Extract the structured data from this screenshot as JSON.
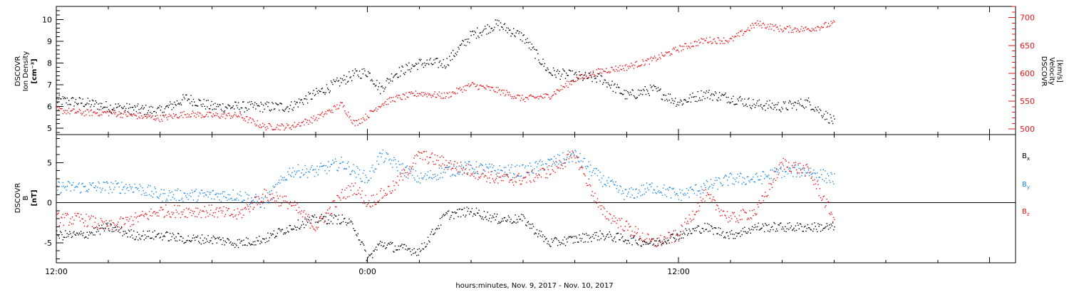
{
  "chart_data": [
    {
      "type": "scatter",
      "panel": "top",
      "ylabel": [
        "DSCOVR",
        "Ion Density",
        "[cm⁻³]"
      ],
      "ylabel_right": [
        "DSCOVR",
        "Velocity",
        "[km/s]"
      ],
      "x_tick_labels": [
        "12:00",
        "0:00",
        "12:00"
      ],
      "y_ticks_left": [
        5,
        6,
        7,
        8,
        9,
        10
      ],
      "y_ticks_right": [
        500,
        550,
        600,
        650,
        700
      ],
      "ylim": [
        4.7,
        10.6
      ],
      "ylim_right": [
        490,
        720
      ],
      "xlim_hours": [
        0,
        37
      ],
      "series": [
        {
          "color": "#000000",
          "x_hours": [
            0,
            1,
            2,
            3,
            4,
            5,
            6,
            7,
            8,
            9,
            10,
            11,
            11.5,
            12,
            12.5,
            13,
            14,
            15,
            16,
            17,
            18,
            19,
            20,
            21,
            22,
            23,
            24,
            25,
            26,
            27,
            28,
            29,
            30
          ],
          "values": [
            6.3,
            6.2,
            6.0,
            5.9,
            5.8,
            6.4,
            6.0,
            6.0,
            6.0,
            6.0,
            6.6,
            7.2,
            7.5,
            7.6,
            6.8,
            7.5,
            8.0,
            8.0,
            9.3,
            9.8,
            9.2,
            7.6,
            7.4,
            7.3,
            6.5,
            6.8,
            6.2,
            6.6,
            6.4,
            6.1,
            6.0,
            6.2,
            5.3
          ]
        },
        {
          "color": "#e8141a",
          "x_hours": [
            0,
            1,
            2,
            3,
            4,
            5,
            6,
            7,
            8,
            9,
            10,
            11,
            11.5,
            12,
            12.5,
            13,
            14,
            15,
            16,
            17,
            18,
            19,
            20,
            21,
            22,
            23,
            24,
            25,
            26,
            27,
            28,
            29,
            30
          ],
          "values": [
            535,
            530,
            530,
            525,
            520,
            528,
            525,
            525,
            505,
            505,
            520,
            545,
            510,
            525,
            545,
            555,
            565,
            560,
            580,
            570,
            555,
            560,
            590,
            605,
            612,
            625,
            645,
            660,
            660,
            690,
            680,
            680,
            690
          ]
        }
      ]
    },
    {
      "type": "scatter",
      "panel": "bottom",
      "ylabel": [
        "DSCOVR",
        "B",
        "[nT]"
      ],
      "y_ticks_left": [
        -5,
        0,
        5
      ],
      "ylim": [
        -7.5,
        8.5
      ],
      "xlim_hours": [
        0,
        37
      ],
      "zero_line": true,
      "series": [
        {
          "name": "Bx",
          "label_main": "B",
          "label_sub": "x",
          "color": "#000000",
          "x_hours": [
            0,
            1,
            2,
            3,
            4,
            5,
            6,
            7,
            8,
            9,
            10,
            11,
            11.5,
            12,
            12.5,
            13,
            14,
            15,
            16,
            17,
            18,
            19,
            20,
            21,
            22,
            23,
            24,
            25,
            26,
            27,
            28,
            29,
            30
          ],
          "values": [
            -4,
            -4,
            -3,
            -4,
            -4,
            -4.5,
            -4.5,
            -5,
            -4.5,
            -3,
            -2,
            -2,
            -3,
            -7,
            -5,
            -5.5,
            -6,
            -1.5,
            -1,
            -2,
            -2,
            -5,
            -4.5,
            -4,
            -4.5,
            -5,
            -4,
            -3,
            -4,
            -3,
            -3,
            -3,
            -3
          ]
        },
        {
          "name": "By",
          "label_main": "B",
          "label_sub": "y",
          "color": "#1a88e0",
          "x_hours": [
            0,
            1,
            2,
            3,
            4,
            5,
            6,
            7,
            8,
            9,
            10,
            11,
            11.5,
            12,
            12.5,
            13,
            14,
            15,
            16,
            17,
            18,
            19,
            20,
            21,
            22,
            23,
            24,
            25,
            26,
            27,
            28,
            29,
            30
          ],
          "values": [
            2,
            2,
            2,
            2,
            1,
            1,
            1,
            1,
            0,
            4,
            4,
            5,
            4,
            3,
            6,
            5,
            3,
            4,
            4.5,
            4,
            4,
            5,
            6,
            3,
            1,
            2,
            1,
            2,
            3,
            3,
            4,
            4,
            3
          ]
        },
        {
          "name": "Bz",
          "label_main": "B",
          "label_sub": "z",
          "color": "#e8141a",
          "x_hours": [
            0,
            1,
            2,
            3,
            4,
            5,
            6,
            7,
            8,
            9,
            10,
            11,
            11.5,
            12,
            12.5,
            13,
            14,
            15,
            16,
            17,
            18,
            19,
            20,
            21,
            22,
            23,
            24,
            25,
            26,
            27,
            28,
            29,
            30
          ],
          "values": [
            -2,
            -2,
            -3,
            -2,
            -1,
            -1,
            -1,
            -1.5,
            1,
            0,
            -3,
            1,
            2,
            0,
            1,
            2,
            6,
            5,
            4,
            3,
            3,
            4,
            6,
            -1,
            -3,
            -5,
            -4,
            1,
            -2,
            -1,
            5,
            4,
            -2
          ]
        }
      ]
    }
  ],
  "x_axis_title": "hours:minutes, Nov.  9, 2017 - Nov. 10, 2017"
}
